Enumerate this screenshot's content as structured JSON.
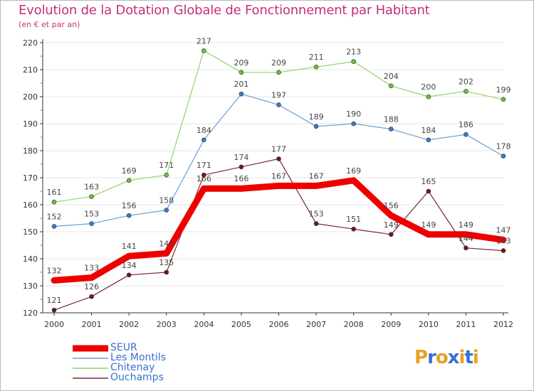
{
  "title": "Evolution de la Dotation Globale de Fonctionnement par Habitant",
  "subtitle": "(en € et par an)",
  "logo": {
    "text": "Proxiti",
    "letters": [
      "P",
      "r",
      "o",
      "x",
      "i",
      "t",
      "i"
    ],
    "colors": [
      "#e8a21f",
      "#3a6fcf",
      "#e8a21f",
      "#3a6fcf",
      "#e8a21f",
      "#3a6fcf",
      "#e8a21f"
    ]
  },
  "colors": {
    "title": "#c3307c",
    "axis": "#333333",
    "grid": "#e6e6e6",
    "labels": "#333333",
    "legend_text": "#3a6fcf"
  },
  "chart_data": {
    "type": "line",
    "title": "Evolution de la Dotation Globale de Fonctionnement par Habitant",
    "subtitle": "(en € et par an)",
    "xlabel": "",
    "ylabel": "",
    "categories": [
      "2000",
      "2001",
      "2002",
      "2003",
      "2004",
      "2005",
      "2006",
      "2007",
      "2008",
      "2009",
      "2010",
      "2011",
      "2012"
    ],
    "ylim": [
      120,
      220
    ],
    "yticks": [
      120,
      130,
      140,
      150,
      160,
      170,
      180,
      190,
      200,
      210,
      220
    ],
    "grid": true,
    "legend_position": "bottom-left",
    "series": [
      {
        "name": "Chitenay",
        "color": "#8fd462",
        "dot": "#6cc040",
        "width": 1.2,
        "emphasis": false,
        "values": [
          161,
          163,
          169,
          171,
          217,
          209,
          209,
          211,
          213,
          204,
          200,
          202,
          199
        ]
      },
      {
        "name": "Les Montils",
        "color": "#6a9fd4",
        "dot": "#3c7dc3",
        "width": 1.2,
        "emphasis": false,
        "values": [
          152,
          153,
          156,
          158,
          184,
          201,
          197,
          189,
          190,
          188,
          184,
          186,
          178
        ]
      },
      {
        "name": "Ouchamps",
        "color": "#7a2a34",
        "dot": "#6a1820",
        "width": 1.2,
        "emphasis": false,
        "values": [
          121,
          126,
          134,
          135,
          171,
          174,
          177,
          153,
          151,
          149,
          165,
          144,
          143
        ]
      },
      {
        "name": "SEUR",
        "color": "#ee0000",
        "dot": "#ee0000",
        "width": 9,
        "emphasis": true,
        "values": [
          132,
          133,
          141,
          142,
          166,
          166,
          167,
          167,
          169,
          156,
          149,
          149,
          147
        ]
      }
    ],
    "legend_order": [
      "SEUR",
      "Les Montils",
      "Chitenay",
      "Ouchamps"
    ]
  }
}
